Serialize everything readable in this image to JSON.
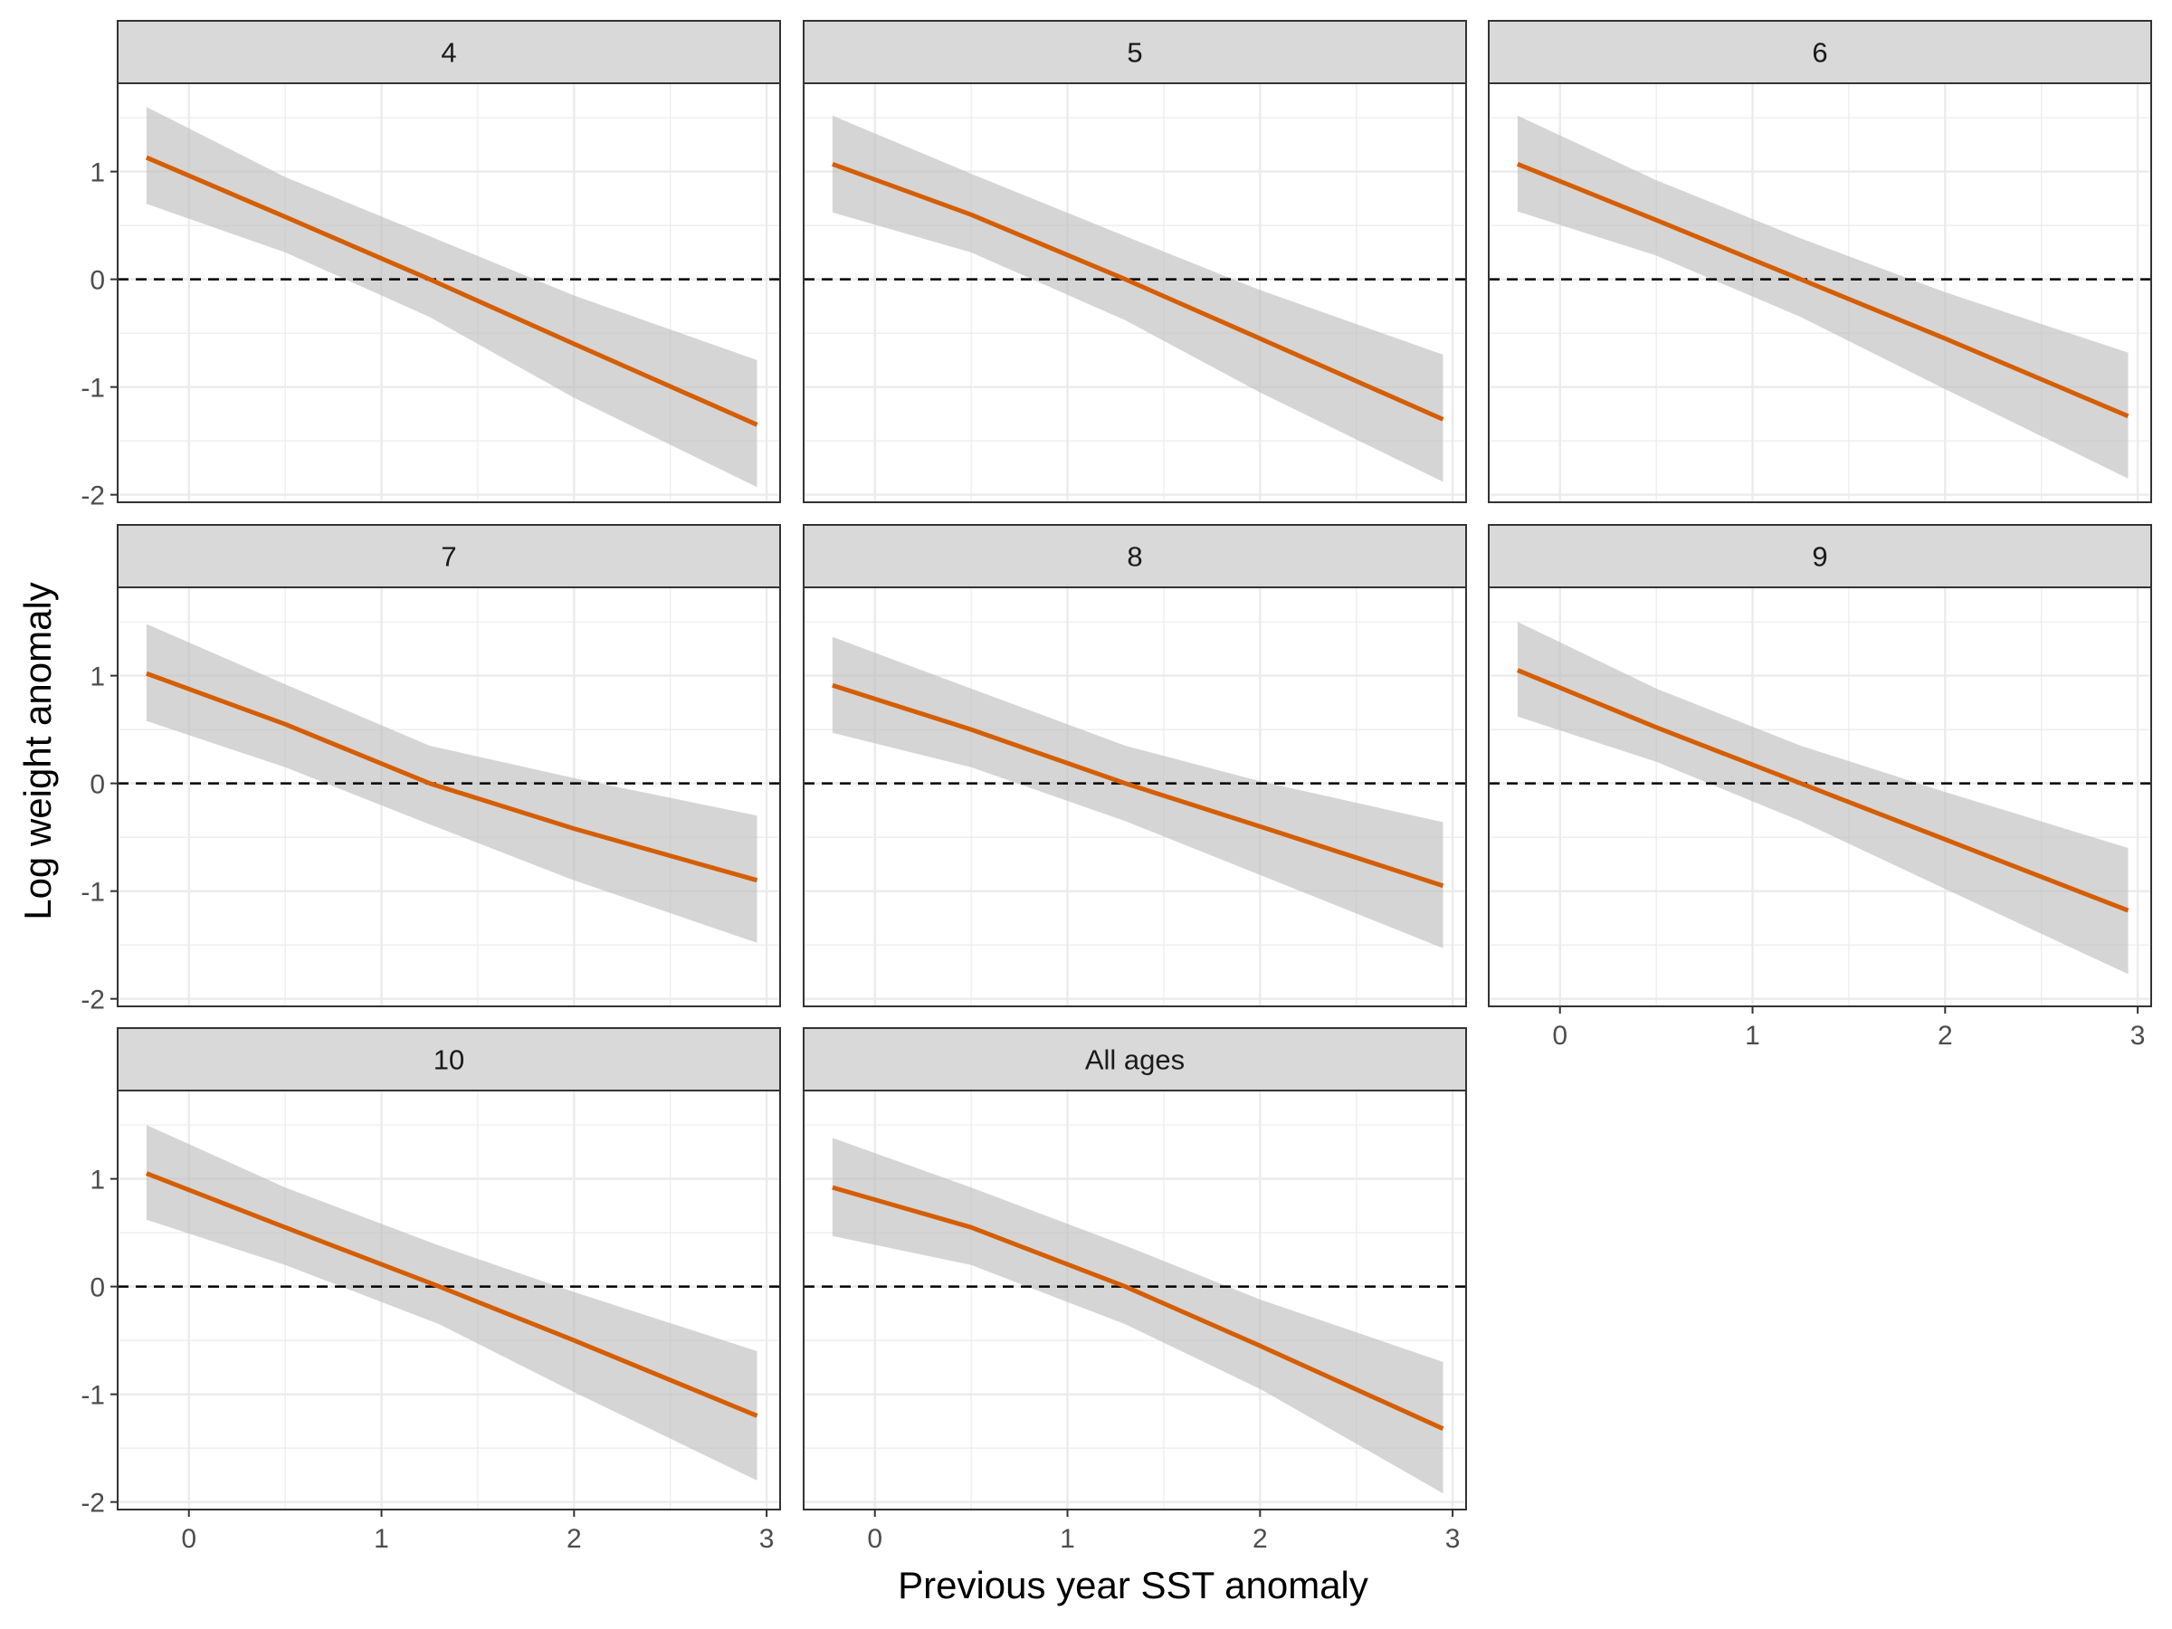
{
  "chart_data": {
    "type": "line",
    "xlabel": "Previous year SST anomaly",
    "ylabel": "Log weight anomaly",
    "xlim": [
      -0.37,
      3.07
    ],
    "ylim": [
      -2.07,
      1.82
    ],
    "x_ticks": [
      0,
      1,
      2,
      3
    ],
    "y_ticks": [
      -2,
      -1,
      0,
      1
    ],
    "reference_line": {
      "y": 0,
      "style": "dashed",
      "color": "#000000"
    },
    "colors": {
      "line": "#D55E00",
      "ribbon": "#BEBEBE",
      "strip": "#D9D9D9",
      "grid": "#EBEBEB",
      "border": "#333333"
    },
    "grid": true,
    "facets": [
      {
        "label": "4",
        "x": [
          -0.22,
          0.5,
          1.25,
          2.0,
          2.95
        ],
        "y": [
          1.13,
          0.58,
          0.0,
          -0.6,
          -1.35
        ],
        "lower": [
          0.7,
          0.25,
          -0.35,
          -1.1,
          -1.93
        ],
        "upper": [
          1.6,
          0.95,
          0.4,
          -0.15,
          -0.75
        ]
      },
      {
        "label": "5",
        "x": [
          -0.22,
          0.5,
          1.3,
          2.0,
          2.95
        ],
        "y": [
          1.07,
          0.6,
          0.0,
          -0.55,
          -1.3
        ],
        "lower": [
          0.62,
          0.25,
          -0.38,
          -1.05,
          -1.88
        ],
        "upper": [
          1.52,
          0.98,
          0.4,
          -0.1,
          -0.7
        ]
      },
      {
        "label": "6",
        "x": [
          -0.22,
          0.5,
          1.25,
          2.0,
          2.95
        ],
        "y": [
          1.07,
          0.55,
          0.0,
          -0.55,
          -1.27
        ],
        "lower": [
          0.63,
          0.22,
          -0.35,
          -1.02,
          -1.85
        ],
        "upper": [
          1.52,
          0.92,
          0.38,
          -0.12,
          -0.68
        ]
      },
      {
        "label": "7",
        "x": [
          -0.22,
          0.5,
          1.25,
          2.0,
          2.95
        ],
        "y": [
          1.02,
          0.55,
          0.0,
          -0.42,
          -0.9
        ],
        "lower": [
          0.58,
          0.15,
          -0.38,
          -0.9,
          -1.48
        ],
        "upper": [
          1.48,
          0.92,
          0.35,
          0.05,
          -0.3
        ]
      },
      {
        "label": "8",
        "x": [
          -0.22,
          0.5,
          1.3,
          2.0,
          2.95
        ],
        "y": [
          0.91,
          0.5,
          0.0,
          -0.4,
          -0.95
        ],
        "lower": [
          0.47,
          0.15,
          -0.35,
          -0.85,
          -1.53
        ],
        "upper": [
          1.36,
          0.88,
          0.35,
          0.02,
          -0.36
        ]
      },
      {
        "label": "9",
        "x": [
          -0.22,
          0.5,
          1.25,
          2.0,
          2.95
        ],
        "y": [
          1.05,
          0.52,
          0.0,
          -0.52,
          -1.18
        ],
        "lower": [
          0.62,
          0.2,
          -0.35,
          -0.98,
          -1.77
        ],
        "upper": [
          1.5,
          0.88,
          0.35,
          -0.08,
          -0.6
        ]
      },
      {
        "label": "10",
        "x": [
          -0.22,
          0.5,
          1.3,
          2.0,
          2.95
        ],
        "y": [
          1.05,
          0.55,
          0.0,
          -0.5,
          -1.2
        ],
        "lower": [
          0.62,
          0.2,
          -0.35,
          -0.98,
          -1.8
        ],
        "upper": [
          1.5,
          0.92,
          0.38,
          -0.05,
          -0.6
        ]
      },
      {
        "label": "All ages",
        "x": [
          -0.22,
          0.5,
          1.3,
          2.0,
          2.95
        ],
        "y": [
          0.92,
          0.55,
          0.0,
          -0.55,
          -1.32
        ],
        "lower": [
          0.47,
          0.2,
          -0.35,
          -0.95,
          -1.92
        ],
        "upper": [
          1.38,
          0.92,
          0.38,
          -0.12,
          -0.7
        ]
      }
    ]
  }
}
